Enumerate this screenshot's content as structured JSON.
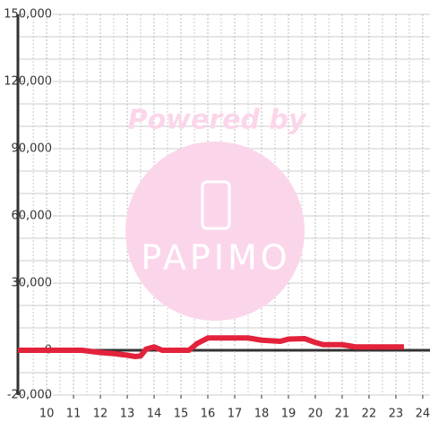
{
  "chart_data": {
    "type": "line",
    "watermark": "Powered by",
    "watermark_logo": "PAPIMO",
    "x": [
      8.93,
      11.3,
      12,
      12.5,
      13,
      13.3,
      13.5,
      13.7,
      14,
      14.3,
      15.3,
      15.6,
      16,
      17.5,
      18,
      18.7,
      19,
      19.6,
      20,
      20.3,
      21,
      21.5,
      23.3
    ],
    "series": [
      {
        "name": "line",
        "color": "#e3223b",
        "values": [
          0,
          0,
          -1000,
          -1500,
          -2200,
          -2800,
          -2500,
          500,
          1500,
          0,
          0,
          3000,
          5500,
          5500,
          4500,
          4000,
          5000,
          5200,
          3500,
          2500,
          2500,
          1500,
          1500
        ]
      }
    ],
    "xlim": [
      8.93,
      24.27
    ],
    "xticks": [
      10,
      11,
      12,
      13,
      14,
      15,
      16,
      17,
      18,
      19,
      20,
      21,
      22,
      23,
      24
    ],
    "x_minor_ticks": [
      9.5,
      10.5,
      11.5,
      12.5,
      13.5,
      14.5,
      15.5,
      16.5,
      17.5,
      18.5,
      19.5,
      20.5,
      21.5,
      22.5,
      23.5
    ],
    "ylim": [
      -20000,
      150000
    ],
    "yticks": [
      {
        "value": -20000,
        "label": "-20,000"
      },
      0,
      {
        "value": 30000,
        "label": "30,000"
      },
      {
        "value": 60000,
        "label": "60,000"
      },
      {
        "value": 90000,
        "label": "90,000"
      },
      {
        "value": 120000,
        "label": "120,000"
      },
      {
        "value": 150000,
        "label": "150,000"
      }
    ],
    "y_minor_ticks": [
      -10000,
      10000,
      20000,
      40000,
      50000,
      70000,
      80000,
      100000,
      110000,
      130000,
      140000
    ],
    "grid": true
  }
}
